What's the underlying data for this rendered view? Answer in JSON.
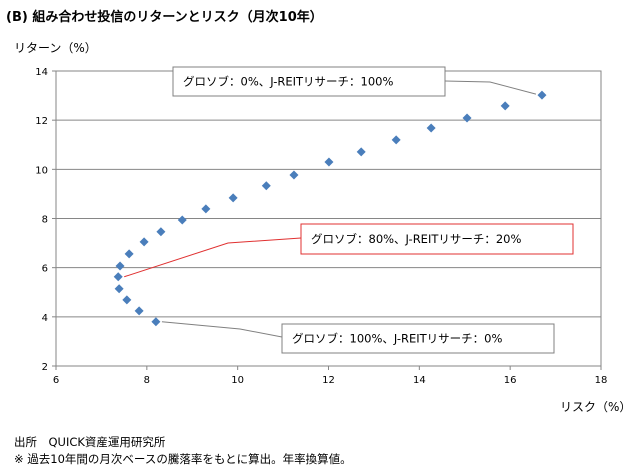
{
  "chart_data": {
    "type": "scatter",
    "title": "(B) 組み合わせ投信のリターンとリスク（月次10年）",
    "xlabel": "リスク（%）",
    "ylabel": "リターン（%）",
    "xlim": [
      6,
      18
    ],
    "ylim": [
      2,
      14
    ],
    "xticks": [
      "6",
      "8",
      "10",
      "12",
      "14",
      "16",
      "18"
    ],
    "yticks": [
      "2",
      "4",
      "6",
      "8",
      "10",
      "12",
      "14"
    ],
    "grid": "horizontal",
    "marker_color": "#4a7ebb",
    "points": [
      {
        "x": 8.2,
        "y": 3.8
      },
      {
        "x": 7.83,
        "y": 4.24
      },
      {
        "x": 7.56,
        "y": 4.69
      },
      {
        "x": 7.39,
        "y": 5.14
      },
      {
        "x": 7.37,
        "y": 5.63
      },
      {
        "x": 7.41,
        "y": 6.07
      },
      {
        "x": 7.61,
        "y": 6.56
      },
      {
        "x": 7.94,
        "y": 7.05
      },
      {
        "x": 8.31,
        "y": 7.46
      },
      {
        "x": 8.78,
        "y": 7.94
      },
      {
        "x": 9.3,
        "y": 8.39
      },
      {
        "x": 9.9,
        "y": 8.84
      },
      {
        "x": 10.63,
        "y": 9.33
      },
      {
        "x": 11.24,
        "y": 9.77
      },
      {
        "x": 12.01,
        "y": 10.3
      },
      {
        "x": 12.72,
        "y": 10.71
      },
      {
        "x": 13.49,
        "y": 11.2
      },
      {
        "x": 14.26,
        "y": 11.68
      },
      {
        "x": 15.05,
        "y": 12.09
      },
      {
        "x": 15.89,
        "y": 12.58
      },
      {
        "x": 16.7,
        "y": 13.02
      }
    ],
    "annotations": [
      {
        "text": "グロソブ：0%、J-REITリサーチ：100%",
        "x": 16.7,
        "y": 13.02,
        "color": "#808080"
      },
      {
        "text": "グロソブ：80%、J-REITリサーチ：20%",
        "x": 7.37,
        "y": 5.63,
        "color": "#e03030"
      },
      {
        "text": "グロソブ：100%、J-REITリサーチ：0%",
        "x": 8.2,
        "y": 3.8,
        "color": "#808080"
      }
    ]
  },
  "notes": {
    "source": "出所　QUICK資産運用研究所",
    "footnote": "※ 過去10年間の月次ベースの騰落率をもとに算出。年率換算値。"
  }
}
